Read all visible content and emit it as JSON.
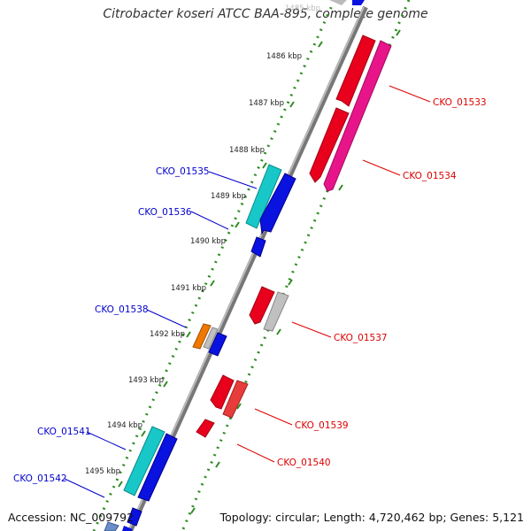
{
  "title": "Citrobacter koseri ATCC BAA-895, complete genome",
  "footer": {
    "accession": "Accession: NC_009792",
    "topology": "Topology: circular; Length: 4,720,462 bp; Genes: 5,121"
  },
  "scale_labels": [
    "1486 kbp",
    "1487 kbp",
    "1488 kbp",
    "1489 kbp",
    "1490 kbp",
    "1491 kbp",
    "1492 kbp",
    "1493 kbp",
    "1494 kbp",
    "1495 kbp"
  ],
  "scale_label_partial": "1485 kbp",
  "genes": [
    {
      "id": "CKO_01533",
      "strand": "reverse",
      "color": "#e8001c"
    },
    {
      "id": "CKO_01534",
      "strand": "reverse",
      "color": "#e8158a"
    },
    {
      "id": "CKO_01535",
      "strand": "forward",
      "color": "#18c8c8"
    },
    {
      "id": "CKO_01536",
      "strand": "forward",
      "color": "#0a12e0"
    },
    {
      "id": "CKO_01537",
      "strand": "reverse",
      "color": "#e8001c"
    },
    {
      "id": "CKO_01538",
      "strand": "forward",
      "color": "#f07800"
    },
    {
      "id": "CKO_01539",
      "strand": "reverse",
      "color": "#e83c3c"
    },
    {
      "id": "CKO_01540",
      "strand": "reverse",
      "color": "#e8001c"
    },
    {
      "id": "CKO_01541",
      "strand": "forward",
      "color": "#18c8c8"
    },
    {
      "id": "CKO_01542",
      "strand": "forward",
      "color": "#0a12e0"
    }
  ],
  "colors": {
    "forward_label": "#0000cc",
    "reverse_label": "#dd0000",
    "backbone": "#888888",
    "gc_dots": "#2e8b22",
    "tick": "#2e8b22",
    "pseudo": "#c0c0c0"
  }
}
